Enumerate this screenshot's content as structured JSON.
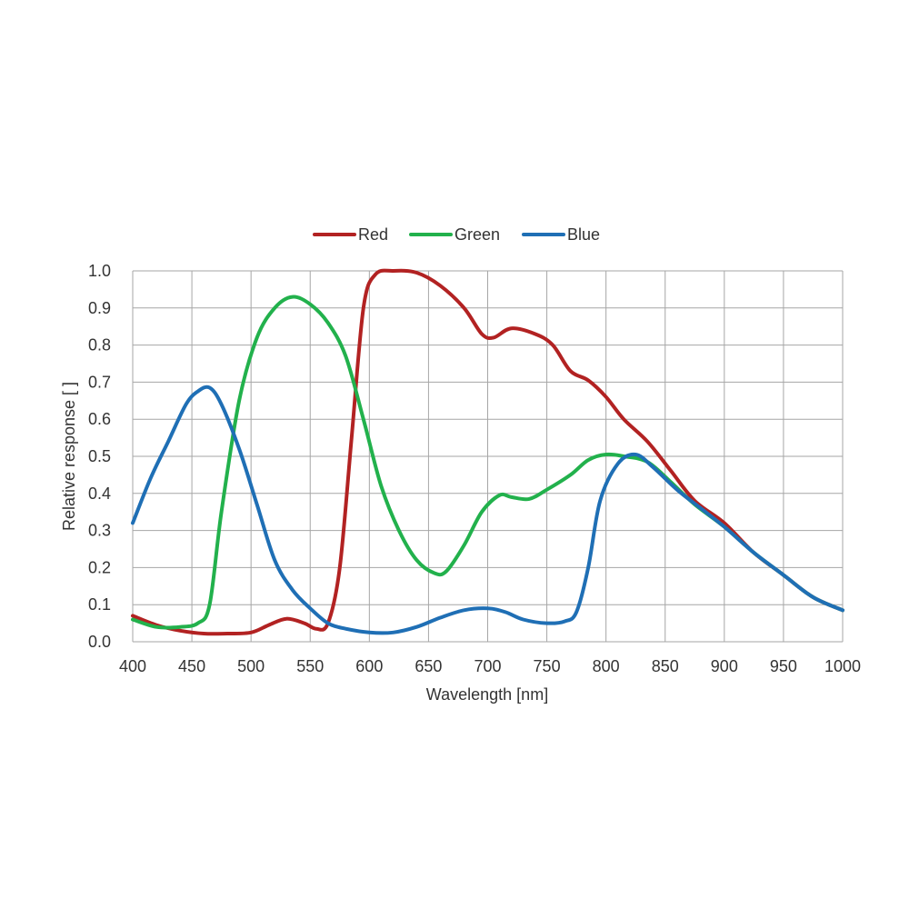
{
  "chart_data": {
    "type": "line",
    "title": "",
    "xlabel": "Wavelength [nm]",
    "ylabel": "Relative response [ ]",
    "xlim": [
      400,
      1000
    ],
    "ylim": [
      0,
      1.0
    ],
    "x_ticks": [
      "400",
      "450",
      "500",
      "550",
      "600",
      "650",
      "700",
      "750",
      "800",
      "850",
      "900",
      "950",
      "1000"
    ],
    "y_ticks": [
      "0.0",
      "0.1",
      "0.2",
      "0.3",
      "0.4",
      "0.5",
      "0.6",
      "0.7",
      "0.8",
      "0.9",
      "1.0"
    ],
    "grid": true,
    "legend_position": "top-center",
    "series": [
      {
        "name": "Red",
        "color": "#b22222",
        "points": [
          [
            400,
            0.07
          ],
          [
            420,
            0.045
          ],
          [
            440,
            0.03
          ],
          [
            460,
            0.022
          ],
          [
            480,
            0.022
          ],
          [
            500,
            0.025
          ],
          [
            515,
            0.045
          ],
          [
            530,
            0.062
          ],
          [
            545,
            0.05
          ],
          [
            555,
            0.035
          ],
          [
            565,
            0.05
          ],
          [
            575,
            0.2
          ],
          [
            585,
            0.55
          ],
          [
            595,
            0.9
          ],
          [
            605,
            0.99
          ],
          [
            620,
            1.0
          ],
          [
            640,
            0.995
          ],
          [
            660,
            0.96
          ],
          [
            680,
            0.9
          ],
          [
            695,
            0.83
          ],
          [
            705,
            0.82
          ],
          [
            720,
            0.845
          ],
          [
            740,
            0.83
          ],
          [
            755,
            0.8
          ],
          [
            770,
            0.73
          ],
          [
            785,
            0.705
          ],
          [
            800,
            0.66
          ],
          [
            815,
            0.6
          ],
          [
            835,
            0.54
          ],
          [
            855,
            0.46
          ],
          [
            875,
            0.38
          ],
          [
            900,
            0.32
          ],
          [
            925,
            0.24
          ],
          [
            950,
            0.18
          ],
          [
            975,
            0.12
          ],
          [
            1000,
            0.085
          ]
        ]
      },
      {
        "name": "Green",
        "color": "#22b14c",
        "points": [
          [
            400,
            0.06
          ],
          [
            420,
            0.04
          ],
          [
            440,
            0.04
          ],
          [
            455,
            0.05
          ],
          [
            465,
            0.1
          ],
          [
            475,
            0.35
          ],
          [
            490,
            0.65
          ],
          [
            505,
            0.82
          ],
          [
            520,
            0.9
          ],
          [
            535,
            0.93
          ],
          [
            550,
            0.91
          ],
          [
            565,
            0.86
          ],
          [
            580,
            0.77
          ],
          [
            595,
            0.6
          ],
          [
            610,
            0.42
          ],
          [
            625,
            0.3
          ],
          [
            640,
            0.22
          ],
          [
            655,
            0.185
          ],
          [
            665,
            0.19
          ],
          [
            680,
            0.26
          ],
          [
            695,
            0.35
          ],
          [
            710,
            0.395
          ],
          [
            720,
            0.39
          ],
          [
            735,
            0.385
          ],
          [
            750,
            0.41
          ],
          [
            770,
            0.45
          ],
          [
            785,
            0.49
          ],
          [
            800,
            0.505
          ],
          [
            815,
            0.5
          ],
          [
            835,
            0.485
          ],
          [
            855,
            0.43
          ],
          [
            875,
            0.37
          ],
          [
            900,
            0.31
          ],
          [
            925,
            0.24
          ],
          [
            950,
            0.18
          ],
          [
            975,
            0.12
          ],
          [
            1000,
            0.085
          ]
        ]
      },
      {
        "name": "Blue",
        "color": "#1f6fb5",
        "points": [
          [
            400,
            0.32
          ],
          [
            415,
            0.44
          ],
          [
            430,
            0.54
          ],
          [
            445,
            0.64
          ],
          [
            455,
            0.675
          ],
          [
            465,
            0.685
          ],
          [
            475,
            0.64
          ],
          [
            490,
            0.52
          ],
          [
            505,
            0.37
          ],
          [
            520,
            0.22
          ],
          [
            535,
            0.14
          ],
          [
            550,
            0.09
          ],
          [
            565,
            0.05
          ],
          [
            580,
            0.035
          ],
          [
            600,
            0.025
          ],
          [
            620,
            0.025
          ],
          [
            640,
            0.04
          ],
          [
            660,
            0.065
          ],
          [
            680,
            0.085
          ],
          [
            700,
            0.09
          ],
          [
            715,
            0.08
          ],
          [
            730,
            0.06
          ],
          [
            750,
            0.05
          ],
          [
            765,
            0.055
          ],
          [
            775,
            0.08
          ],
          [
            785,
            0.2
          ],
          [
            795,
            0.38
          ],
          [
            810,
            0.48
          ],
          [
            825,
            0.505
          ],
          [
            840,
            0.47
          ],
          [
            860,
            0.41
          ],
          [
            880,
            0.36
          ],
          [
            900,
            0.31
          ],
          [
            925,
            0.24
          ],
          [
            950,
            0.18
          ],
          [
            975,
            0.12
          ],
          [
            1000,
            0.085
          ]
        ]
      }
    ]
  }
}
